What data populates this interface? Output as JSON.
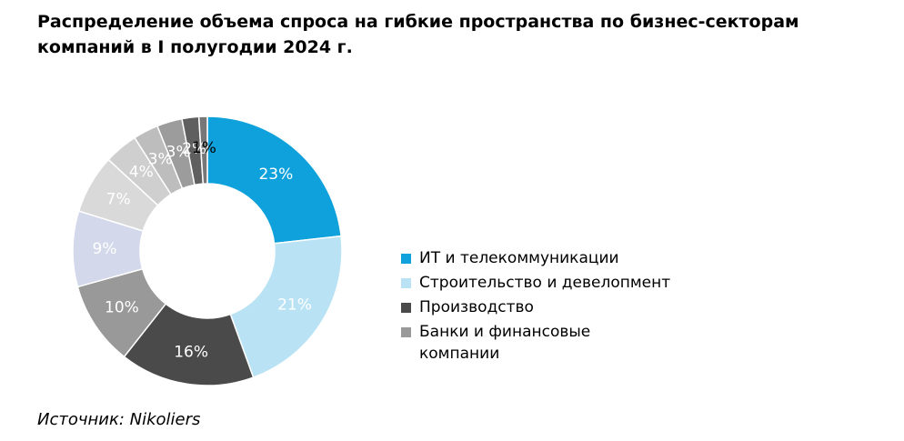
{
  "title": "Распределение объема спроса на гибкие пространства по бизнес-секторам компаний в I полугодии 2024 г.",
  "source": "Источник: Nikoliers",
  "chart_data": {
    "type": "pie",
    "donut": true,
    "slices": [
      {
        "label": "23%",
        "value": 23,
        "color": "#0ea1dc",
        "label_color": "#ffffff"
      },
      {
        "label": "21%",
        "value": 21,
        "color": "#b9e3f5",
        "label_color": "#ffffff"
      },
      {
        "label": "16%",
        "value": 16,
        "color": "#4a4a4a",
        "label_color": "#ffffff"
      },
      {
        "label": "10%",
        "value": 10,
        "color": "#999999",
        "label_color": "#ffffff"
      },
      {
        "label": "9%",
        "value": 9,
        "color": "#d3d8ea",
        "label_color": "#ffffff"
      },
      {
        "label": "7%",
        "value": 7,
        "color": "#d9d9d9",
        "label_color": "#ffffff"
      },
      {
        "label": "4%",
        "value": 4,
        "color": "#cfcfcf",
        "label_color": "#ffffff"
      },
      {
        "label": "3%",
        "value": 3,
        "color": "#bdbdbd",
        "label_color": "#ffffff"
      },
      {
        "label": "3%",
        "value": 3,
        "color": "#9c9c9c",
        "label_color": "#ffffff"
      },
      {
        "label": "2%",
        "value": 2,
        "color": "#5f5f5f",
        "label_color": "#ffffff"
      },
      {
        "label": "1%",
        "value": 1,
        "color": "#777777",
        "label_color": "#000000"
      }
    ],
    "legend": [
      {
        "name": "ИТ и телекоммуникации",
        "color": "#0ea1dc"
      },
      {
        "name": "Строительство и девелопмент",
        "color": "#b9e3f5"
      },
      {
        "name": "Производство",
        "color": "#4a4a4a"
      },
      {
        "name": "Банки и финансовые компании",
        "color": "#999999"
      }
    ],
    "legend_position": "right"
  }
}
